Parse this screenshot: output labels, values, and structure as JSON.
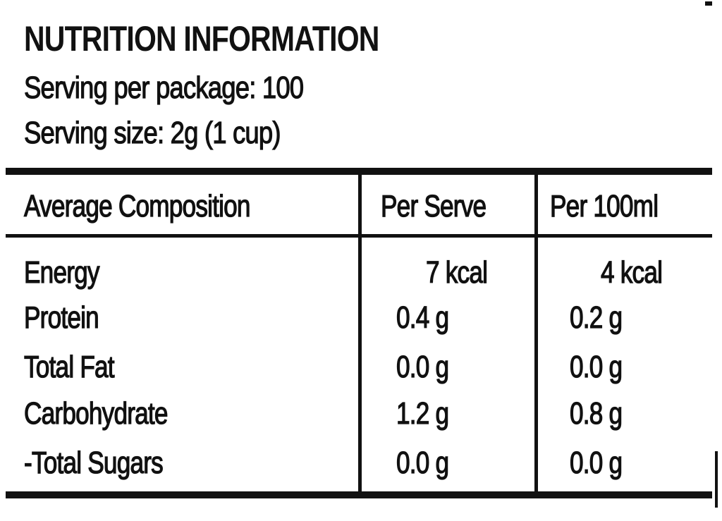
{
  "header": {
    "title": "NUTRITION INFORMATION",
    "servings_per_package": "Serving per package: 100",
    "serving_size": "Serving size: 2g (1 cup)"
  },
  "table": {
    "columns": [
      "Average Composition",
      "Per Serve",
      "Per 100ml"
    ],
    "rows": [
      {
        "nutrient": "Energy",
        "per_serve": "7 kcal",
        "per_100ml": "4 kcal"
      },
      {
        "nutrient": "Protein",
        "per_serve": "0.4 g",
        "per_100ml": "0.2 g"
      },
      {
        "nutrient": "Total Fat",
        "per_serve": "0.0 g",
        "per_100ml": "0.0 g"
      },
      {
        "nutrient": "Carbohydrate",
        "per_serve": "1.2 g",
        "per_100ml": "0.8 g"
      },
      {
        "nutrient": "-Total Sugars",
        "per_serve": "0.0 g",
        "per_100ml": "0.0 g"
      }
    ]
  },
  "colors": {
    "ink": "#111111",
    "paper": "#ffffff"
  }
}
